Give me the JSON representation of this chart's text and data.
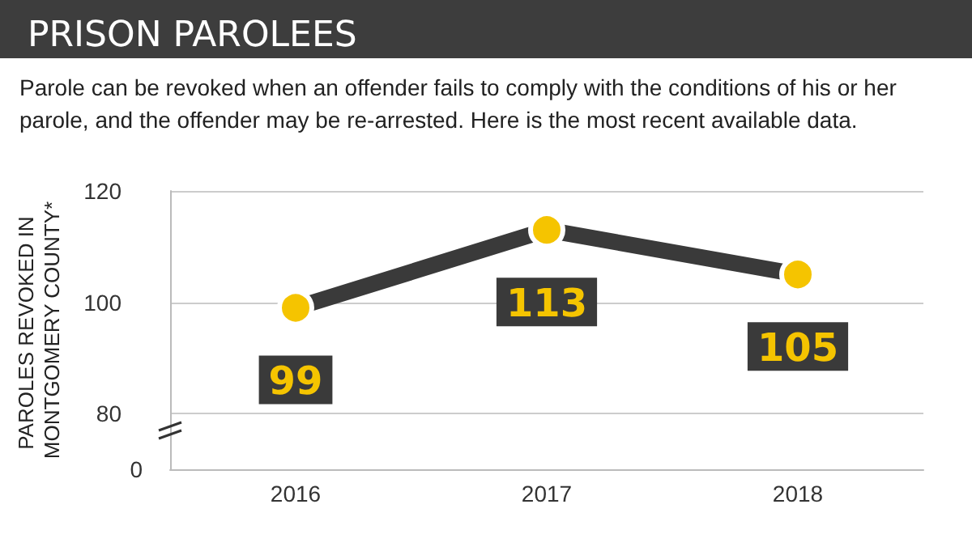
{
  "chart_data": {
    "type": "line",
    "title": "PRISON PAROLEES",
    "subtitle": "Parole can be revoked when an offender fails to comply with the conditions of his or her parole, and the offender may be re-arrested. Here is the most recent available data.",
    "ylabel": "PAROLES REVOKED IN MONTGOMERY COUNTY*",
    "categories": [
      "2016",
      "2017",
      "2018"
    ],
    "series": [
      {
        "color": "#3a3a3a",
        "values": [
          99,
          113,
          105
        ]
      }
    ],
    "ylim": [
      70,
      120
    ],
    "yticks": [
      80,
      100,
      120
    ],
    "annotations": [
      "0"
    ],
    "grid": "y",
    "marker": "circle",
    "line_style": "solid",
    "data_labels": true
  }
}
